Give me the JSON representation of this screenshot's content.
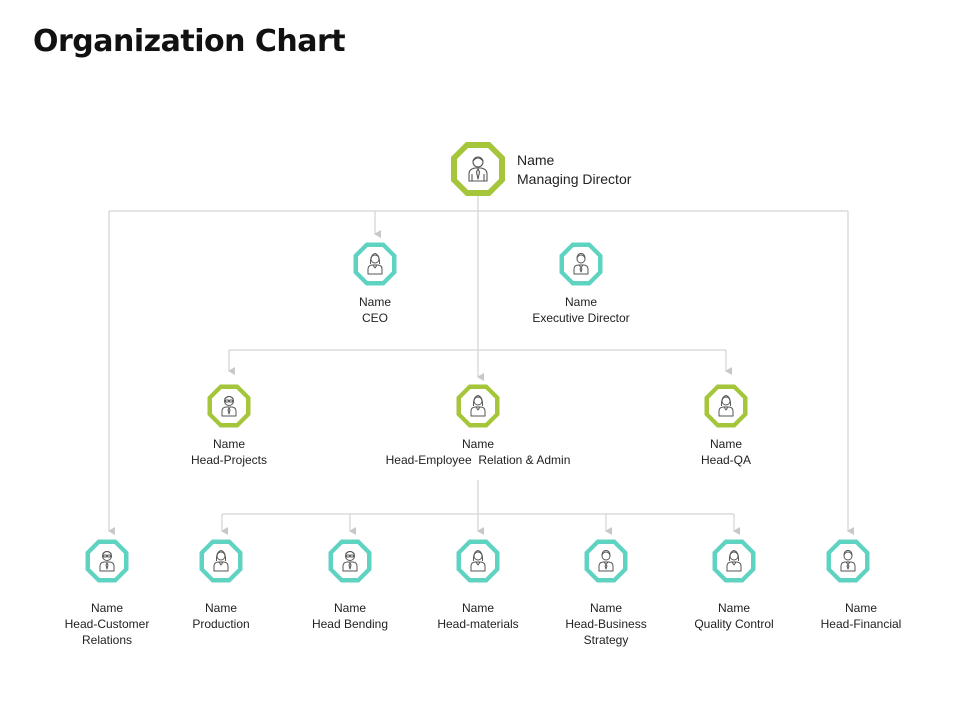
{
  "title": "Organization Chart",
  "colors": {
    "green": "#a5c63b",
    "teal": "#5fd3c2",
    "line": "#d3d3d3",
    "arrow": "#c8c8c8"
  },
  "nodes": {
    "md": {
      "name": "Name",
      "role": "Managing Director",
      "icon": "person-tie-icon"
    },
    "ceo": {
      "name": "Name",
      "role": "CEO",
      "icon": "person-woman-icon"
    },
    "exec": {
      "name": "Name",
      "role": "Executive Director",
      "icon": "person-man-icon"
    },
    "projects": {
      "name": "Name",
      "role": "Head-Projects",
      "icon": "person-glasses-icon"
    },
    "hr": {
      "name": "Name",
      "role": "Head-Employee  Relation & Admin",
      "icon": "person-woman-icon"
    },
    "qa": {
      "name": "Name",
      "role": "Head-QA",
      "icon": "person-woman-icon"
    },
    "cust": {
      "name": "Name",
      "role1": "Head-Customer",
      "role2": "Relations",
      "icon": "person-glasses-icon"
    },
    "production": {
      "name": "Name",
      "role": "Production",
      "icon": "person-woman-icon"
    },
    "bending": {
      "name": "Name",
      "role": "Head Bending",
      "icon": "person-glasses-icon"
    },
    "materials": {
      "name": "Name",
      "role": "Head-materials",
      "icon": "person-woman-icon"
    },
    "strategy": {
      "name": "Name",
      "role1": "Head-Business",
      "role2": "Strategy",
      "icon": "person-man-icon"
    },
    "quality": {
      "name": "Name",
      "role": "Quality Control",
      "icon": "person-woman-icon"
    },
    "financial": {
      "name": "Name",
      "role": "Head-Financial",
      "icon": "person-man-icon"
    }
  }
}
